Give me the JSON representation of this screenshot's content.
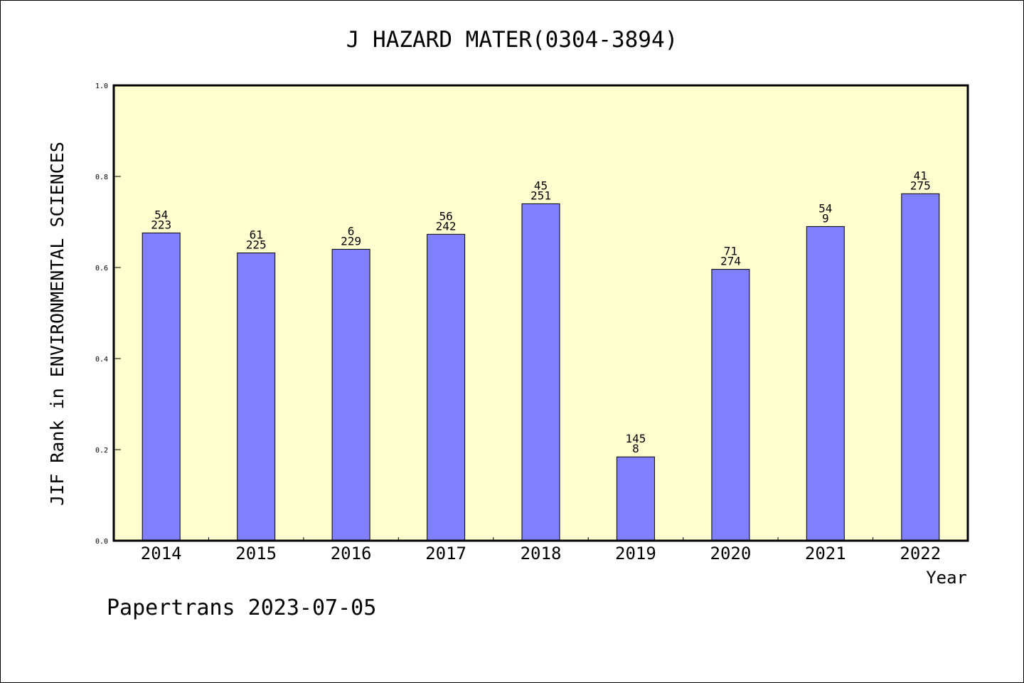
{
  "chart_data": {
    "type": "bar",
    "title": "J HAZARD MATER(0304-3894)",
    "xlabel": "Year",
    "ylabel": "JIF Rank in ENVIRONMENTAL SCIENCES",
    "ylim": [
      0,
      1.0
    ],
    "yticks": [
      "0.0",
      "0.2",
      "0.4",
      "0.6",
      "0.8",
      "1.0"
    ],
    "categories": [
      "2014",
      "2015",
      "2016",
      "2017",
      "2018",
      "2019",
      "2020",
      "2021",
      "2022"
    ],
    "values": [
      0.676,
      0.632,
      0.64,
      0.673,
      0.74,
      0.184,
      0.596,
      0.69,
      0.762
    ],
    "bar_labels": [
      {
        "top": "54",
        "bottom": "223"
      },
      {
        "top": "61",
        "bottom": "225"
      },
      {
        "top": "6",
        "bottom": "229"
      },
      {
        "top": "56",
        "bottom": "242"
      },
      {
        "top": "45",
        "bottom": "251"
      },
      {
        "top": "145",
        "bottom": "8"
      },
      {
        "top": "71",
        "bottom": "274"
      },
      {
        "top": "54",
        "bottom": "9"
      },
      {
        "top": "41",
        "bottom": "275"
      }
    ],
    "grid": false,
    "colors": {
      "bar": "#8080ff",
      "plot_background": "#ffffd0",
      "axis": "#000000"
    }
  },
  "footer": "Papertrans 2023-07-05"
}
